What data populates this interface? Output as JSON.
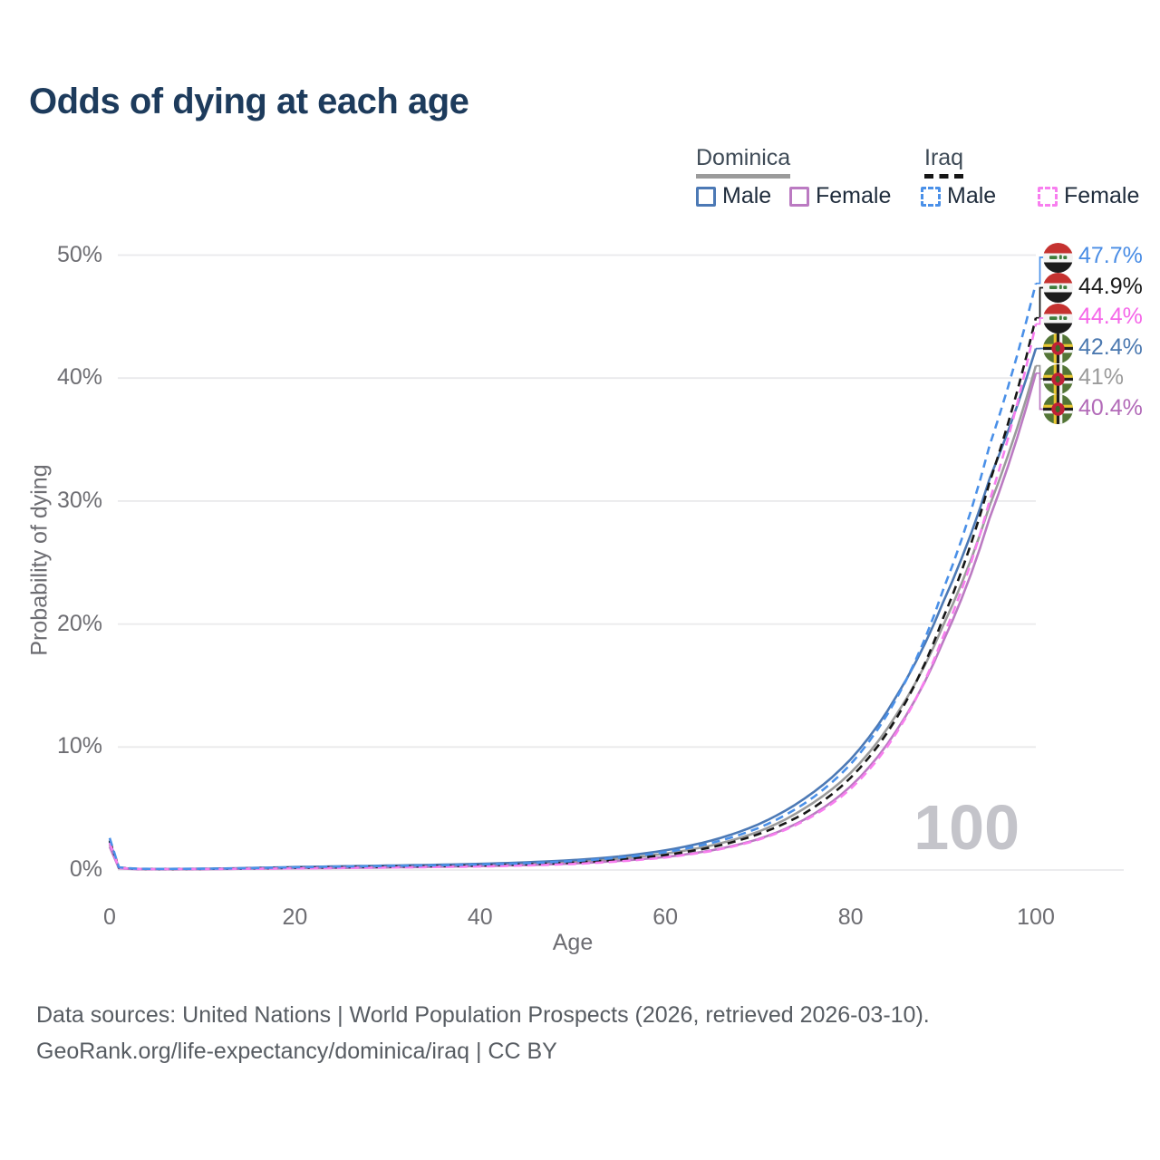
{
  "title": "Odds of dying at each age",
  "watermark": "100",
  "footer": {
    "line1": "Data sources: United Nations | World Population Prospects (2026, retrieved 2026-03-10).",
    "line2": "GeoRank.org/life-expectancy/dominica/iraq | CC BY"
  },
  "colors": {
    "dominica_male": "#4c79b5",
    "dominica_female": "#bb7ac2",
    "dominica_all": "#9b9b9b",
    "iraq_male": "#4a90e8",
    "iraq_female": "#f87eef",
    "iraq_all": "#161616",
    "grid": "#e9e9eb",
    "title_text": "#1d3b5c",
    "axis_text": "#6d6d72",
    "watermark_text": "#c4c4ca",
    "footer_text": "#575c62"
  },
  "legend": {
    "groups": [
      {
        "label": "Dominica",
        "line_style": "solid",
        "underline_color": "#9b9b9b",
        "items": [
          {
            "label": "Male",
            "color_key": "dominica_male"
          },
          {
            "label": "Female",
            "color_key": "dominica_female"
          }
        ]
      },
      {
        "label": "Iraq",
        "line_style": "dashed",
        "underline_color": "#161616",
        "items": [
          {
            "label": "Male",
            "color_key": "iraq_male"
          },
          {
            "label": "Female",
            "color_key": "iraq_female"
          }
        ]
      }
    ]
  },
  "chart_data": {
    "type": "line",
    "title": "Odds of dying at each age",
    "xlabel": "Age",
    "ylabel": "Probability of dying",
    "xlim": [
      0,
      100
    ],
    "ylim": [
      0,
      50
    ],
    "xticks": [
      "0",
      "20",
      "40",
      "60",
      "80",
      "100"
    ],
    "yticks": [
      "0%",
      "10%",
      "20%",
      "30%",
      "40%",
      "50%"
    ],
    "grid": true,
    "legend_position": "top-right",
    "series": [
      {
        "name": "Dominica average",
        "country": "dominica",
        "sex": "all",
        "flag": "dominica",
        "line_style": "solid",
        "color_key": "dominica_all",
        "end_label": "41%",
        "label_color": "#9b9b9b",
        "points": [
          [
            0,
            2.1
          ],
          [
            1,
            0.16
          ],
          [
            3,
            0.08
          ],
          [
            5,
            0.07
          ],
          [
            10,
            0.08
          ],
          [
            15,
            0.13
          ],
          [
            20,
            0.19
          ],
          [
            25,
            0.24
          ],
          [
            30,
            0.29
          ],
          [
            35,
            0.34
          ],
          [
            40,
            0.41
          ],
          [
            45,
            0.51
          ],
          [
            50,
            0.66
          ],
          [
            55,
            0.92
          ],
          [
            60,
            1.33
          ],
          [
            65,
            2.0
          ],
          [
            70,
            3.1
          ],
          [
            75,
            5.0
          ],
          [
            80,
            7.9
          ],
          [
            85,
            12.7
          ],
          [
            90,
            19.9
          ],
          [
            95,
            29.6
          ],
          [
            100,
            41.0
          ]
        ]
      },
      {
        "name": "Dominica male",
        "country": "dominica",
        "sex": "male",
        "flag": "dominica",
        "line_style": "solid",
        "color_key": "dominica_male",
        "end_label": "42.4%",
        "label_color": "#4c79b0",
        "points": [
          [
            0,
            2.3
          ],
          [
            1,
            0.18
          ],
          [
            3,
            0.09
          ],
          [
            5,
            0.08
          ],
          [
            10,
            0.1
          ],
          [
            15,
            0.16
          ],
          [
            20,
            0.24
          ],
          [
            25,
            0.3
          ],
          [
            30,
            0.36
          ],
          [
            35,
            0.42
          ],
          [
            40,
            0.5
          ],
          [
            45,
            0.62
          ],
          [
            50,
            0.8
          ],
          [
            55,
            1.1
          ],
          [
            60,
            1.6
          ],
          [
            65,
            2.4
          ],
          [
            70,
            3.7
          ],
          [
            75,
            5.8
          ],
          [
            80,
            9.0
          ],
          [
            85,
            14.2
          ],
          [
            90,
            21.8
          ],
          [
            95,
            31.8
          ],
          [
            100,
            42.4
          ]
        ]
      },
      {
        "name": "Dominica female",
        "country": "dominica",
        "sex": "female",
        "flag": "dominica",
        "line_style": "solid",
        "color_key": "dominica_female",
        "end_label": "40.4%",
        "label_color": "#b26ab8",
        "points": [
          [
            0,
            1.9
          ],
          [
            1,
            0.14
          ],
          [
            3,
            0.07
          ],
          [
            5,
            0.06
          ],
          [
            10,
            0.07
          ],
          [
            15,
            0.1
          ],
          [
            20,
            0.14
          ],
          [
            25,
            0.17
          ],
          [
            30,
            0.21
          ],
          [
            35,
            0.26
          ],
          [
            40,
            0.32
          ],
          [
            45,
            0.4
          ],
          [
            50,
            0.53
          ],
          [
            55,
            0.74
          ],
          [
            60,
            1.06
          ],
          [
            65,
            1.6
          ],
          [
            70,
            2.5
          ],
          [
            75,
            4.1
          ],
          [
            80,
            6.8
          ],
          [
            85,
            11.4
          ],
          [
            90,
            18.6
          ],
          [
            95,
            28.6
          ],
          [
            100,
            40.4
          ]
        ]
      },
      {
        "name": "Iraq average",
        "country": "iraq",
        "sex": "all",
        "flag": "iraq",
        "line_style": "dashed",
        "color_key": "iraq_all",
        "end_label": "44.9%",
        "label_color": "#1a1a1a",
        "points": [
          [
            0,
            2.4
          ],
          [
            1,
            0.2
          ],
          [
            3,
            0.09
          ],
          [
            5,
            0.08
          ],
          [
            10,
            0.09
          ],
          [
            15,
            0.13
          ],
          [
            20,
            0.18
          ],
          [
            25,
            0.23
          ],
          [
            30,
            0.27
          ],
          [
            35,
            0.31
          ],
          [
            40,
            0.37
          ],
          [
            45,
            0.46
          ],
          [
            50,
            0.6
          ],
          [
            55,
            0.84
          ],
          [
            60,
            1.22
          ],
          [
            65,
            1.85
          ],
          [
            70,
            2.9
          ],
          [
            75,
            4.6
          ],
          [
            80,
            7.5
          ],
          [
            85,
            12.4
          ],
          [
            90,
            20.5
          ],
          [
            95,
            31.5
          ],
          [
            100,
            44.9
          ]
        ]
      },
      {
        "name": "Iraq female",
        "country": "iraq",
        "sex": "female",
        "flag": "iraq",
        "line_style": "dashed",
        "color_key": "iraq_female",
        "end_label": "44.4%",
        "label_color": "#f567e9",
        "points": [
          [
            0,
            2.2
          ],
          [
            1,
            0.18
          ],
          [
            3,
            0.08
          ],
          [
            5,
            0.07
          ],
          [
            10,
            0.08
          ],
          [
            15,
            0.1
          ],
          [
            20,
            0.13
          ],
          [
            25,
            0.16
          ],
          [
            30,
            0.2
          ],
          [
            35,
            0.24
          ],
          [
            40,
            0.29
          ],
          [
            45,
            0.37
          ],
          [
            50,
            0.49
          ],
          [
            55,
            0.7
          ],
          [
            60,
            1.02
          ],
          [
            65,
            1.55
          ],
          [
            70,
            2.45
          ],
          [
            75,
            4.0
          ],
          [
            80,
            6.6
          ],
          [
            85,
            11.2
          ],
          [
            90,
            19.0
          ],
          [
            95,
            30.0
          ],
          [
            100,
            44.4
          ]
        ]
      },
      {
        "name": "Iraq male",
        "country": "iraq",
        "sex": "male",
        "flag": "iraq",
        "line_style": "dashed",
        "color_key": "iraq_male",
        "end_label": "47.7%",
        "label_color": "#4a8de5",
        "points": [
          [
            0,
            2.6
          ],
          [
            1,
            0.22
          ],
          [
            3,
            0.1
          ],
          [
            5,
            0.09
          ],
          [
            10,
            0.1
          ],
          [
            15,
            0.15
          ],
          [
            20,
            0.22
          ],
          [
            25,
            0.28
          ],
          [
            30,
            0.33
          ],
          [
            35,
            0.38
          ],
          [
            40,
            0.45
          ],
          [
            45,
            0.55
          ],
          [
            50,
            0.72
          ],
          [
            55,
            1.0
          ],
          [
            60,
            1.45
          ],
          [
            65,
            2.2
          ],
          [
            70,
            3.4
          ],
          [
            75,
            5.4
          ],
          [
            80,
            8.6
          ],
          [
            85,
            14.0
          ],
          [
            90,
            22.8
          ],
          [
            95,
            34.5
          ],
          [
            100,
            47.7
          ]
        ]
      }
    ]
  }
}
